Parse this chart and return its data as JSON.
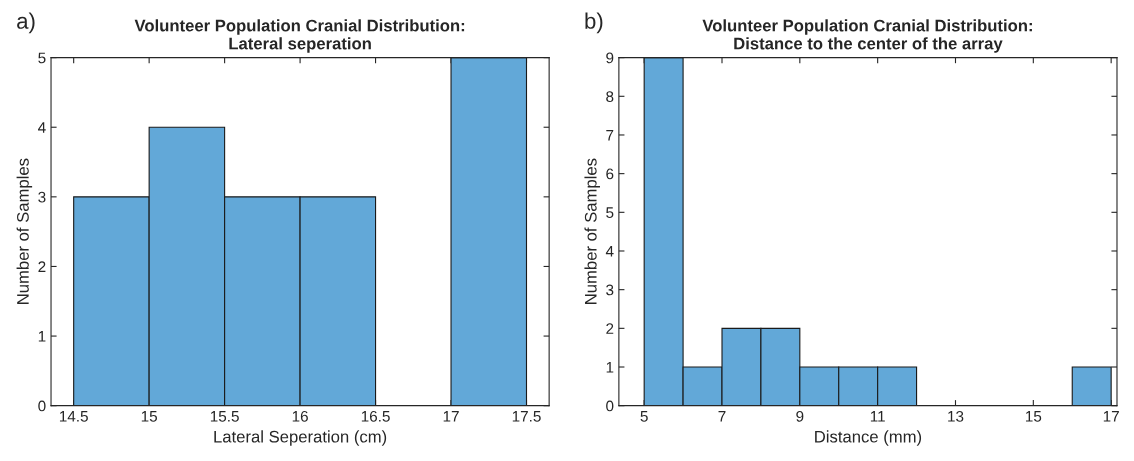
{
  "chart_data": [
    {
      "type": "histogram",
      "title": "Volunteer Population Cranial Distribution:\nLateral seperation",
      "xlabel": "Lateral Seperation (cm)",
      "ylabel": "Number of Samples",
      "annotations": [
        "a)"
      ],
      "bins": [
        14.5,
        15,
        15.5,
        16,
        16.5,
        17,
        17.5
      ],
      "values": [
        3,
        4,
        3,
        3,
        0,
        5
      ],
      "color": "#62a8d8",
      "xlim": [
        14.35,
        17.65
      ],
      "xticks": [
        14.5,
        15,
        15.5,
        16,
        16.5,
        17,
        17.5
      ],
      "ylim": [
        0,
        5
      ],
      "yticks": [
        0,
        1,
        2,
        3,
        4,
        5
      ],
      "grid": false
    },
    {
      "type": "histogram",
      "title": "Volunteer Population Cranial Distribution:\nDistance to the center of the array",
      "xlabel": "Distance (mm)",
      "ylabel": "Number of Samples",
      "annotations": [
        "b)"
      ],
      "bins": [
        5,
        6,
        7,
        8,
        9,
        10,
        11,
        12,
        13,
        14,
        15,
        16,
        17
      ],
      "values": [
        9,
        1,
        2,
        2,
        1,
        1,
        1,
        0,
        0,
        0,
        0,
        1
      ],
      "color": "#62a8d8",
      "xlim": [
        4.35,
        17.15
      ],
      "xticks": [
        5,
        7,
        9,
        11,
        13,
        15,
        17
      ],
      "ylim": [
        0,
        9
      ],
      "yticks": [
        0,
        1,
        2,
        3,
        4,
        5,
        6,
        7,
        8,
        9
      ],
      "grid": false
    }
  ]
}
